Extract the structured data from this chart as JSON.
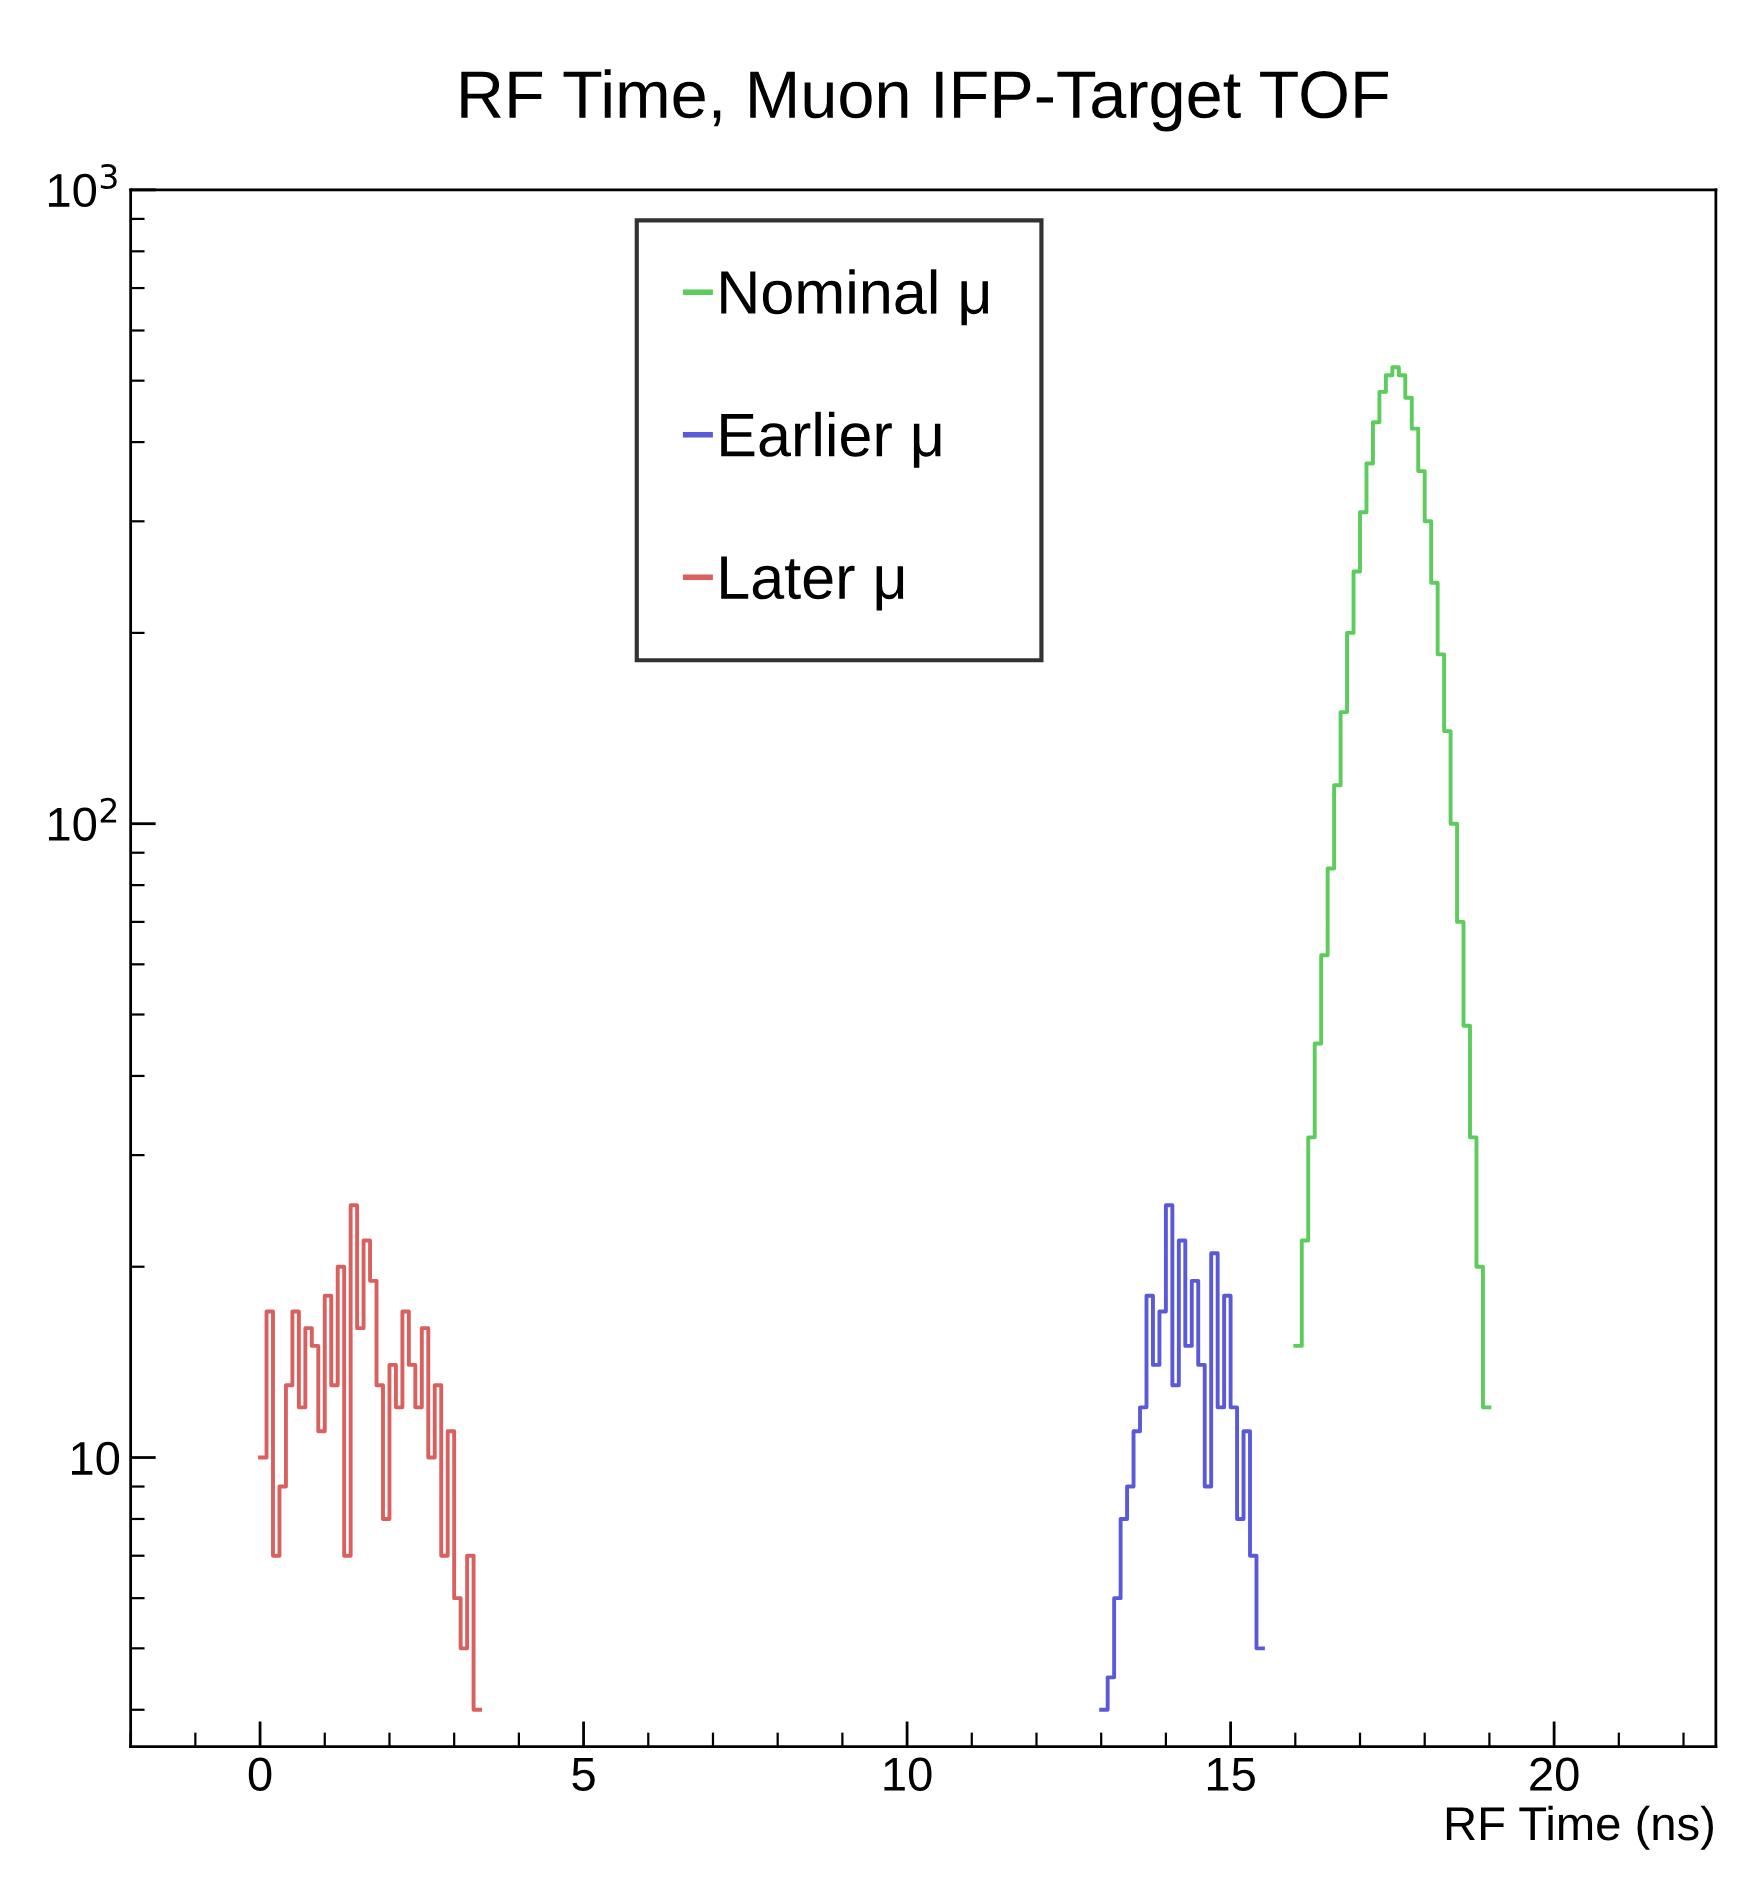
{
  "chart_data": {
    "type": "step",
    "title": "RF Time, Muon IFP-Target TOF",
    "xlabel": "RF Time (ns)",
    "log": "y",
    "legend": "top",
    "grid": false,
    "xlim": [
      -2,
      22.5
    ],
    "xticks": [
      0,
      5,
      10,
      15,
      20
    ],
    "ylim": [
      3.5,
      1000
    ],
    "yticks": [
      10,
      {
        "value": 100,
        "label": "10$^{2}$"
      },
      {
        "value": 1000,
        "label": "10$^{3}$"
      }
    ],
    "series": [
      {
        "name": "Nominal μ",
        "color": "#5ccc5c",
        "x": [
          16.0,
          16.1,
          16.2,
          16.3,
          16.4,
          16.5,
          16.6,
          16.7,
          16.8,
          16.9,
          17.0,
          17.1,
          17.2,
          17.3,
          17.4,
          17.5,
          17.6,
          17.7,
          17.8,
          17.9,
          18.0,
          18.1,
          18.2,
          18.3,
          18.4,
          18.5,
          18.6,
          18.7,
          18.8,
          18.9
        ],
        "values": [
          15,
          22,
          32,
          45,
          62,
          85,
          115,
          150,
          200,
          250,
          310,
          370,
          430,
          480,
          510,
          525,
          510,
          470,
          420,
          360,
          300,
          240,
          185,
          140,
          100,
          70,
          48,
          32,
          20,
          12
        ]
      },
      {
        "name": "Earlier μ",
        "color": "#5a5ad8",
        "x": [
          13.0,
          13.1,
          13.2,
          13.3,
          13.4,
          13.5,
          13.6,
          13.7,
          13.8,
          13.9,
          14.0,
          14.1,
          14.2,
          14.3,
          14.4,
          14.5,
          14.6,
          14.7,
          14.8,
          14.9,
          15.0,
          15.1,
          15.2,
          15.3,
          15.4
        ],
        "values": [
          4,
          4.5,
          6,
          8,
          9,
          11,
          12,
          18,
          14,
          17,
          25,
          13,
          22,
          15,
          19,
          14,
          9,
          21,
          12,
          18,
          12,
          8,
          11,
          7,
          5
        ]
      },
      {
        "name": "Later μ",
        "color": "#d9605f",
        "x": [
          0.0,
          0.1,
          0.2,
          0.3,
          0.4,
          0.5,
          0.6,
          0.7,
          0.8,
          0.9,
          1.0,
          1.1,
          1.2,
          1.3,
          1.4,
          1.5,
          1.6,
          1.7,
          1.8,
          1.9,
          2.0,
          2.1,
          2.2,
          2.3,
          2.4,
          2.5,
          2.6,
          2.7,
          2.8,
          2.9,
          3.0,
          3.1,
          3.2,
          3.3
        ],
        "values": [
          10,
          17,
          7,
          9,
          13,
          17,
          12,
          16,
          15,
          11,
          18,
          13,
          20,
          7,
          25,
          16,
          22,
          19,
          13,
          8,
          14,
          12,
          17,
          14,
          12,
          16,
          10,
          13,
          7,
          11,
          6,
          5,
          7,
          4
        ]
      }
    ]
  }
}
